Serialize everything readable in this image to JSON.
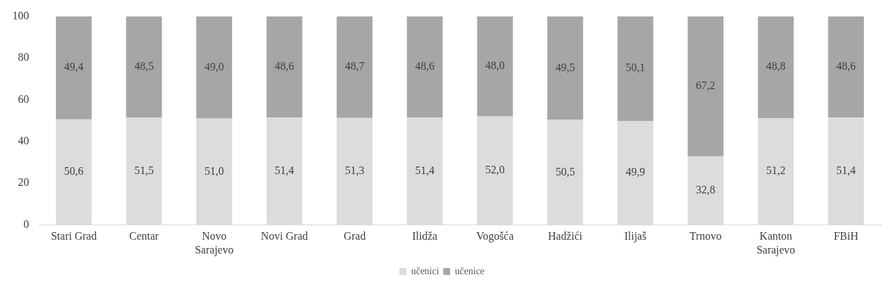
{
  "chart_data": {
    "type": "bar",
    "stacked": true,
    "categories": [
      "Stari Grad",
      "Centar",
      "Novo Sarajevo",
      "Novi Grad",
      "Grad",
      "Ilidža",
      "Vogošća",
      "Hadžići",
      "Ilijaš",
      "Trnovo",
      "Kanton Sarajevo",
      "FBiH"
    ],
    "series": [
      {
        "name": "učenici",
        "color": "#dcdcdc",
        "values": [
          50.6,
          51.5,
          51.0,
          51.4,
          51.3,
          51.4,
          52.0,
          50.5,
          49.9,
          32.8,
          51.2,
          51.4
        ],
        "value_labels": [
          "50,6",
          "51,5",
          "51,0",
          "51,4",
          "51,3",
          "51,4",
          "52,0",
          "50,5",
          "49,9",
          "32,8",
          "51,2",
          "51,4"
        ]
      },
      {
        "name": "učenice",
        "color": "#a6a6a6",
        "values": [
          49.4,
          48.5,
          49.0,
          48.6,
          48.7,
          48.6,
          48.0,
          49.5,
          50.1,
          67.2,
          48.8,
          48.6
        ],
        "value_labels": [
          "49,4",
          "48,5",
          "49,0",
          "48,6",
          "48,7",
          "48,6",
          "48,0",
          "49,5",
          "50,1",
          "67,2",
          "48,8",
          "48,6"
        ]
      }
    ],
    "ylim": [
      0,
      100
    ],
    "yticks": [
      0,
      20,
      40,
      60,
      80,
      100
    ],
    "grid": false,
    "legend": "bottom"
  }
}
